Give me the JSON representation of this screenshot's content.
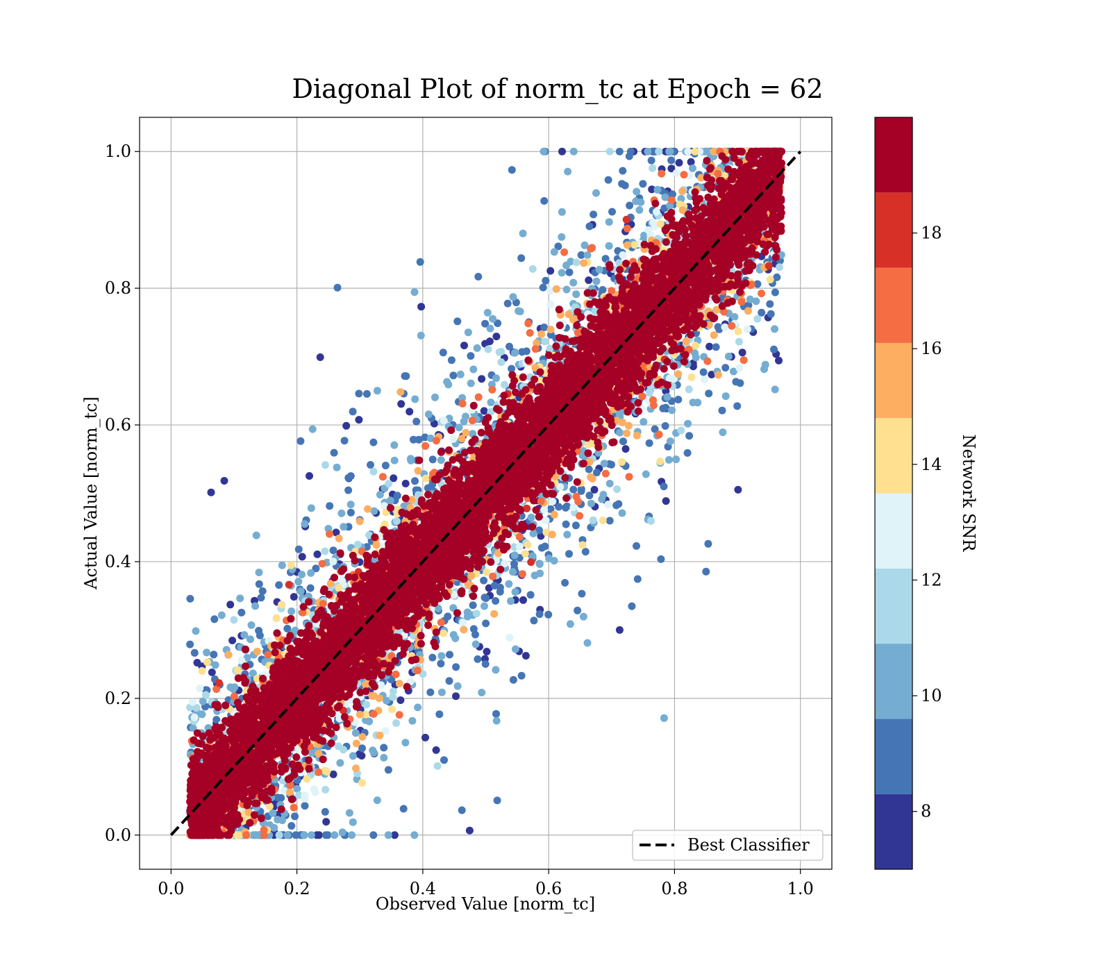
{
  "chart_data": {
    "type": "scatter",
    "title": "Diagonal Plot of norm_tc at Epoch = 62",
    "xlabel": "Observed Value [norm_tc]",
    "ylabel": "Actual Value [norm_tc]",
    "xlim": [
      -0.05,
      1.05
    ],
    "ylim": [
      -0.05,
      1.05
    ],
    "x_ticks": [
      "0.0",
      "0.2",
      "0.4",
      "0.6",
      "0.8",
      "1.0"
    ],
    "y_ticks": [
      "0.0",
      "0.2",
      "0.4",
      "0.6",
      "0.8",
      "1.0"
    ],
    "grid": true,
    "reference_line": {
      "name": "Best Classifier",
      "x": [
        0.0,
        1.0
      ],
      "y": [
        0.0,
        1.0
      ],
      "style": "dashed",
      "color": "#000000"
    },
    "legend": {
      "placement": "lower-right",
      "entries": [
        "Best Classifier"
      ]
    },
    "colorbar": {
      "label": "Network SNR",
      "range": [
        7,
        20
      ],
      "ticks": [
        "8",
        "10",
        "12",
        "14",
        "16",
        "18"
      ],
      "bins": [
        {
          "from": 7,
          "to": 8.3,
          "color": "#313695"
        },
        {
          "from": 8.3,
          "to": 9.6,
          "color": "#4575b4"
        },
        {
          "from": 9.6,
          "to": 10.9,
          "color": "#74add1"
        },
        {
          "from": 10.9,
          "to": 12.2,
          "color": "#abd9e9"
        },
        {
          "from": 12.2,
          "to": 13.5,
          "color": "#e0f3f8"
        },
        {
          "from": 13.5,
          "to": 14.8,
          "color": "#fee090"
        },
        {
          "from": 14.8,
          "to": 16.1,
          "color": "#fdae61"
        },
        {
          "from": 16.1,
          "to": 17.4,
          "color": "#f46d43"
        },
        {
          "from": 17.4,
          "to": 18.7,
          "color": "#d73027"
        },
        {
          "from": 18.7,
          "to": 20,
          "color": "#a50026"
        }
      ]
    },
    "point_cloud": {
      "description_of_distribution": "points cluster along y=x; high SNR near diagonal, low SNR spread away",
      "x_range": [
        0.03,
        0.97
      ],
      "y_range": [
        0.0,
        1.0
      ]
    }
  }
}
